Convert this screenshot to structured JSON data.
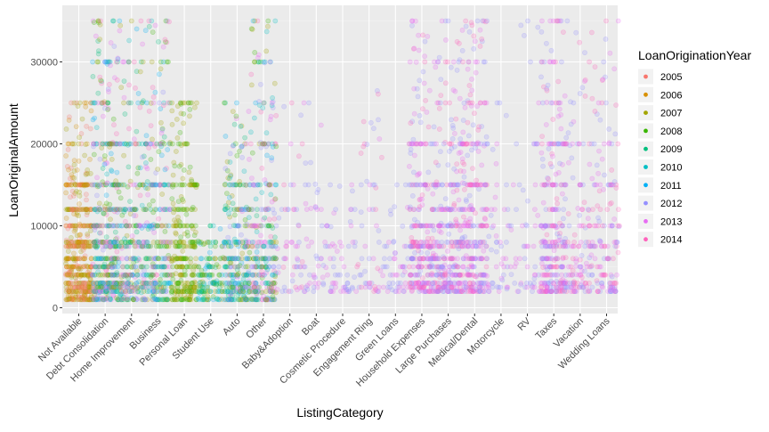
{
  "chart_data": {
    "type": "scatter",
    "xlabel": "ListingCategory",
    "ylabel": "LoanOriginalAmount",
    "categories": [
      "Not Available",
      "Debt Consolidation",
      "Home Improvement",
      "Business",
      "Personal Loan",
      "Student Use",
      "Auto",
      "Other",
      "Baby&Adoption",
      "Boat",
      "Cosmetic Procedure",
      "Engagement Ring",
      "Green Loans",
      "Household Expenses",
      "Large Purchases",
      "Medical/Dental",
      "Motorcycle",
      "RV",
      "Taxes",
      "Vacation",
      "Wedding Loans"
    ],
    "ylim": [
      0,
      35000
    ],
    "yticks": [
      0,
      10000,
      20000,
      30000
    ],
    "grid": true,
    "legend": {
      "title": "LoanOriginationYear",
      "placement": "right",
      "entries": [
        "2005",
        "2006",
        "2007",
        "2008",
        "2009",
        "2010",
        "2011",
        "2012",
        "2013",
        "2014"
      ]
    },
    "year_colors": {
      "2005": "#F8766D",
      "2006": "#D89000",
      "2007": "#A3A500",
      "2008": "#39B600",
      "2009": "#00BF7D",
      "2010": "#00BFC4",
      "2011": "#00B0F6",
      "2012": "#9590FF",
      "2013": "#E76BF3",
      "2014": "#FF62BC"
    },
    "category_profile": [
      {
        "category": "Not Available",
        "years": [
          "2005",
          "2006",
          "2007"
        ],
        "min": 1000,
        "max": 25000,
        "density": "very high"
      },
      {
        "category": "Debt Consolidation",
        "years": [
          "2007",
          "2008",
          "2009",
          "2010",
          "2011",
          "2012",
          "2013",
          "2014"
        ],
        "min": 1000,
        "max": 35000,
        "density": "very high"
      },
      {
        "category": "Home Improvement",
        "years": [
          "2007",
          "2008",
          "2009",
          "2010",
          "2011",
          "2012",
          "2013",
          "2014"
        ],
        "min": 1000,
        "max": 35000,
        "density": "high"
      },
      {
        "category": "Business",
        "years": [
          "2007",
          "2008",
          "2009",
          "2010",
          "2011",
          "2012",
          "2013",
          "2014"
        ],
        "min": 1000,
        "max": 35000,
        "density": "high"
      },
      {
        "category": "Personal Loan",
        "years": [
          "2007",
          "2008"
        ],
        "min": 1000,
        "max": 25000,
        "density": "high"
      },
      {
        "category": "Student Use",
        "years": [
          "2007",
          "2008",
          "2009",
          "2010",
          "2011"
        ],
        "min": 1000,
        "max": 10000,
        "density": "medium"
      },
      {
        "category": "Auto",
        "years": [
          "2007",
          "2008",
          "2009",
          "2010",
          "2011",
          "2012",
          "2013"
        ],
        "min": 1000,
        "max": 25000,
        "density": "high"
      },
      {
        "category": "Other",
        "years": [
          "2007",
          "2008",
          "2009",
          "2010",
          "2011",
          "2012",
          "2013",
          "2014"
        ],
        "min": 1000,
        "max": 35000,
        "density": "high"
      },
      {
        "category": "Baby&Adoption",
        "years": [
          "2012",
          "2013",
          "2014"
        ],
        "min": 2000,
        "max": 25000,
        "density": "low"
      },
      {
        "category": "Boat",
        "years": [
          "2012",
          "2013"
        ],
        "min": 2000,
        "max": 25000,
        "density": "low"
      },
      {
        "category": "Cosmetic Procedure",
        "years": [
          "2012",
          "2013"
        ],
        "min": 2000,
        "max": 15000,
        "density": "low"
      },
      {
        "category": "Engagement Ring",
        "years": [
          "2012",
          "2013",
          "2014"
        ],
        "min": 2000,
        "max": 27000,
        "density": "low"
      },
      {
        "category": "Green Loans",
        "years": [
          "2012",
          "2013"
        ],
        "min": 2000,
        "max": 15000,
        "density": "low"
      },
      {
        "category": "Household Expenses",
        "years": [
          "2012",
          "2013",
          "2014"
        ],
        "min": 2000,
        "max": 35000,
        "density": "high"
      },
      {
        "category": "Large Purchases",
        "years": [
          "2012",
          "2013",
          "2014"
        ],
        "min": 2000,
        "max": 35000,
        "density": "high"
      },
      {
        "category": "Medical/Dental",
        "years": [
          "2012",
          "2013",
          "2014"
        ],
        "min": 2000,
        "max": 35000,
        "density": "high"
      },
      {
        "category": "Motorcycle",
        "years": [
          "2012",
          "2013"
        ],
        "min": 2000,
        "max": 25000,
        "density": "low"
      },
      {
        "category": "RV",
        "years": [
          "2012",
          "2013"
        ],
        "min": 2000,
        "max": 35000,
        "density": "low"
      },
      {
        "category": "Taxes",
        "years": [
          "2012",
          "2013",
          "2014"
        ],
        "min": 2000,
        "max": 35000,
        "density": "high"
      },
      {
        "category": "Vacation",
        "years": [
          "2012",
          "2013",
          "2014"
        ],
        "min": 2000,
        "max": 35000,
        "density": "medium"
      },
      {
        "category": "Wedding Loans",
        "years": [
          "2012",
          "2013",
          "2014"
        ],
        "min": 2000,
        "max": 35000,
        "density": "medium"
      }
    ],
    "common_amounts": [
      1000,
      2000,
      2500,
      3000,
      4000,
      5000,
      6000,
      7500,
      8000,
      10000,
      12000,
      15000,
      20000,
      25000,
      30000,
      35000
    ]
  }
}
